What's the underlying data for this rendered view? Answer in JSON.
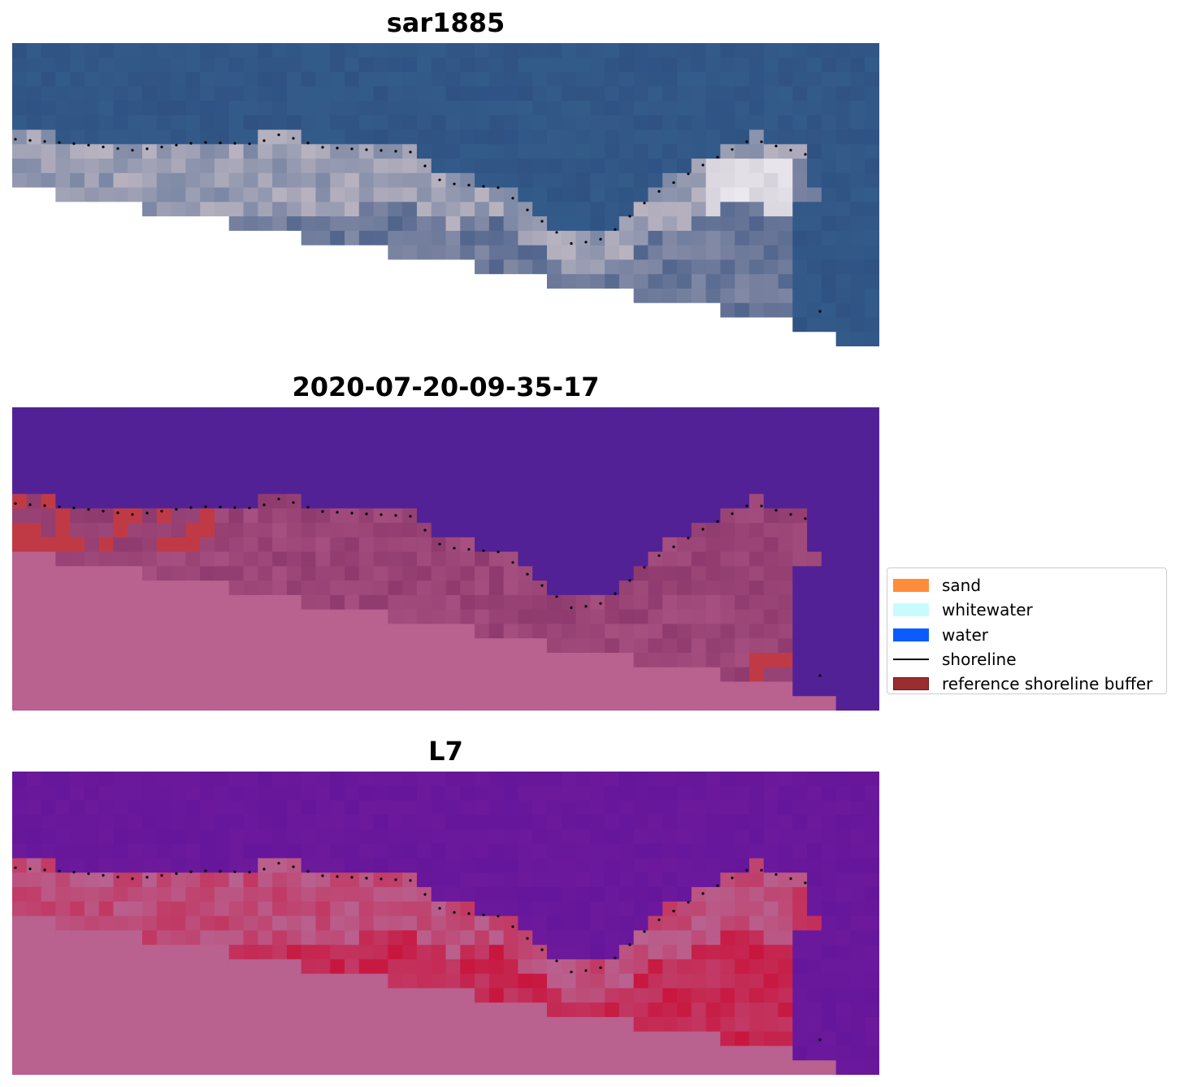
{
  "panels": [
    {
      "title": "sar1885",
      "kind": "rgb"
    },
    {
      "title": "2020-07-20-09-35-17",
      "kind": "classified"
    },
    {
      "title": "L7",
      "kind": "index"
    }
  ],
  "legend": {
    "items": [
      {
        "label": "sand",
        "color": "#ff8c3a",
        "type": "patch"
      },
      {
        "label": "whitewater",
        "color": "#c8fcfc",
        "type": "patch"
      },
      {
        "label": "water",
        "color": "#0a5cff",
        "type": "patch"
      },
      {
        "label": "shoreline",
        "color": "#000000",
        "type": "line"
      },
      {
        "label": "reference shoreline buffer",
        "color": "#9a2e2e",
        "edge": "#6a1a1a",
        "type": "patch"
      }
    ]
  },
  "colors": {
    "rgb_water": "#2f5283",
    "rgb_beach": "#b9b3c0",
    "rgb_bright": "#f2f0f5",
    "nodata": "#ffffff",
    "class_water": "#532196",
    "class_land": "#b9618f",
    "class_sand_overlay": "#8f3a6e",
    "class_buffer": "#c03a46",
    "index_water": "#65169a",
    "index_land": "#b9618f",
    "index_hot": "#c8163e",
    "dark_pixel_rgb": "#1a3a9a",
    "dark_pixel_class": "#5a1a6a"
  }
}
